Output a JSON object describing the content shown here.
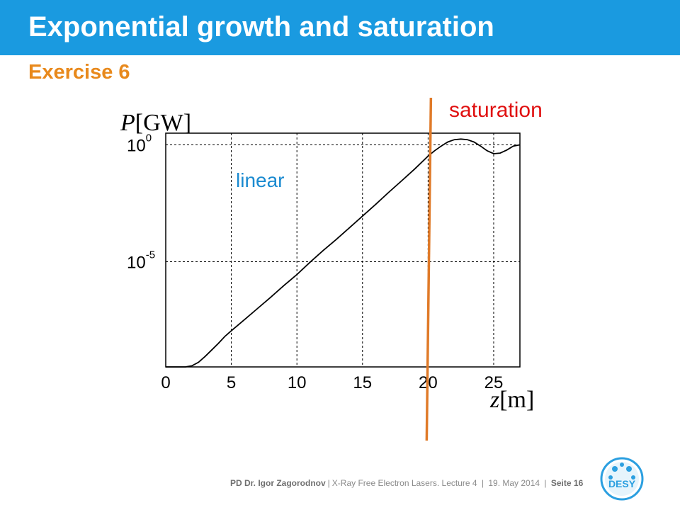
{
  "slide": {
    "title": "Exponential growth and saturation",
    "subtitle": "Exercise 6"
  },
  "footer": {
    "author": "PD Dr. Igor Zagorodnov",
    "lecture": "X-Ray Free Electron Lasers. Lecture 4",
    "date": "19. May 2014",
    "page": "Seite 16"
  },
  "logo": {
    "text": "DESY",
    "icon": "desy-logo-icon"
  },
  "colors": {
    "title_bar": "#1a9ae0",
    "subtitle": "#e8891c",
    "linear_label": "#1a8ad0",
    "saturation_label": "#e01010",
    "marker_line": "#e07a28"
  },
  "chart_data": {
    "type": "line",
    "xlabel": "z[m]",
    "ylabel": "P[GW]",
    "x_ticks": [
      "0",
      "5",
      "10",
      "15",
      "20",
      "25"
    ],
    "y_ticks": [
      {
        "base": "10",
        "exp": "0",
        "value": 0
      },
      {
        "base": "10",
        "exp": "-5",
        "value": -5
      }
    ],
    "xlim": [
      0,
      27
    ],
    "ylim_log10": [
      -9.5,
      0.5
    ],
    "y_scale": "log",
    "grid": true,
    "annotations": [
      {
        "text": "linear"
      },
      {
        "text": "saturation"
      }
    ],
    "marker_z": 20,
    "series": [
      {
        "x": [
          0,
          1.5,
          2,
          2.5,
          3,
          3.5,
          4,
          4.5,
          5,
          6,
          7,
          8,
          9,
          10,
          11,
          12,
          13,
          14,
          15,
          16,
          17,
          18,
          19,
          20,
          20.5,
          21,
          21.5,
          22,
          22.5,
          23,
          23.5,
          24,
          24.5,
          25,
          25.5,
          26,
          26.5,
          27
        ],
        "y_log10": [
          -9.5,
          -9.5,
          -9.45,
          -9.3,
          -9.05,
          -8.78,
          -8.5,
          -8.2,
          -7.95,
          -7.48,
          -7.0,
          -6.52,
          -6.02,
          -5.55,
          -5.02,
          -4.52,
          -4.05,
          -3.55,
          -3.05,
          -2.55,
          -2.03,
          -1.53,
          -1.02,
          -0.48,
          -0.25,
          -0.05,
          0.12,
          0.22,
          0.25,
          0.22,
          0.12,
          -0.05,
          -0.25,
          -0.38,
          -0.35,
          -0.22,
          -0.05,
          0.0
        ]
      }
    ]
  }
}
